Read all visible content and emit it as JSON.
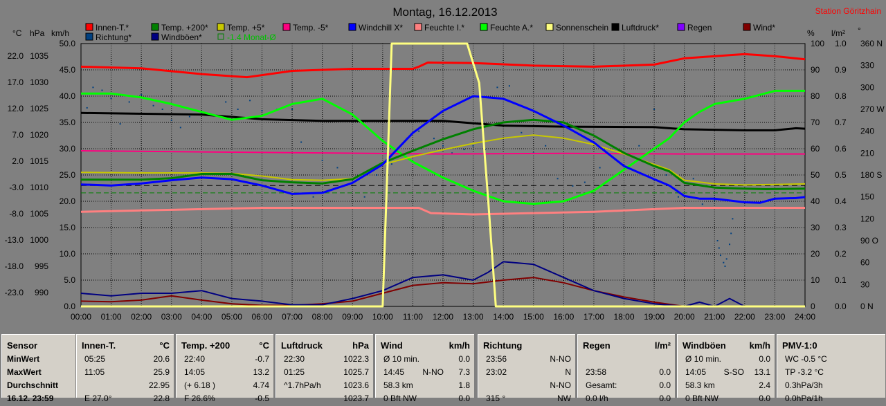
{
  "title": "Montag, 16.12.2013",
  "station": "Station Göritzhain",
  "axes": {
    "left_units": [
      "°C",
      "hPa",
      "km/h"
    ],
    "right_units": [
      "%",
      "l/m²",
      "°"
    ],
    "temp_ticks": [
      "22.0",
      "17.0",
      "12.0",
      "7.0",
      "2.0",
      "-3.0",
      "-8.0",
      "-13.0",
      "-18.0",
      "-23.0"
    ],
    "hpa_ticks": [
      "1035",
      "1030",
      "1025",
      "1020",
      "1015",
      "1010",
      "1005",
      "1000",
      "995",
      "990"
    ],
    "kmh_ticks": [
      "50.0",
      "45.0",
      "40.0",
      "35.0",
      "30.0",
      "25.0",
      "20.0",
      "15.0",
      "10.0",
      "5.0",
      "0.0"
    ],
    "pct_ticks": [
      "100",
      "90",
      "80",
      "70",
      "60",
      "50",
      "40",
      "30",
      "20",
      "10",
      "0"
    ],
    "rain_ticks": [
      "1.0",
      "0.9",
      "0.8",
      "0.7",
      "0.6",
      "0.5",
      "0.4",
      "0.3",
      "0.2",
      "0.1",
      "0.0"
    ],
    "deg_ticks": [
      "360 N",
      "330",
      "300",
      "270 W",
      "240",
      "210",
      "180 S",
      "150",
      "120",
      "90 O",
      "60",
      "30",
      "0 N"
    ],
    "x_ticks": [
      "00:00",
      "01:00",
      "02:00",
      "03:00",
      "04:00",
      "05:00",
      "06:00",
      "07:00",
      "08:00",
      "09:00",
      "10:00",
      "11:00",
      "12:00",
      "13:00",
      "14:00",
      "15:00",
      "16:00",
      "17:00",
      "18:00",
      "19:00",
      "20:00",
      "21:00",
      "22:00",
      "23:00",
      "24:00"
    ]
  },
  "legend": [
    {
      "label": "Innen-T.*",
      "color": "#ff0000"
    },
    {
      "label": "Temp. +200*",
      "color": "#008000"
    },
    {
      "label": "Temp. +5*",
      "color": "#c8c800"
    },
    {
      "label": "Temp. -5*",
      "color": "#ff0080"
    },
    {
      "label": "Windchill X*",
      "color": "#0000ff"
    },
    {
      "label": "Feuchte I.*",
      "color": "#ff8080"
    },
    {
      "label": "Feuchte A.*",
      "color": "#00ff00"
    },
    {
      "label": "Sonnenschein",
      "color": "#ffff80"
    },
    {
      "label": "Luftdruck*",
      "color": "#000000"
    },
    {
      "label": "Regen",
      "color": "#8000ff"
    },
    {
      "label": "Wind*",
      "color": "#800000"
    },
    {
      "label": "Richtung*",
      "color": "#004080"
    },
    {
      "label": "Windböen*",
      "color": "#000080"
    },
    {
      "label": "-1.4 Monat-Ø",
      "color": "#008000"
    }
  ],
  "chart_data": {
    "type": "line",
    "title": "Montag, 16.12.2013",
    "x_unit": "hours",
    "xlim": [
      0,
      24
    ],
    "reference_lines": [
      {
        "name": "-1.4 Monat-Ø",
        "axis": "temp",
        "value": -1.4,
        "style": "dashed",
        "color": "#008000"
      },
      {
        "axis": "temp",
        "value": 0.0,
        "style": "dashed",
        "color": "#000000"
      }
    ],
    "series": [
      {
        "name": "Innen-T.*",
        "axis": "temp",
        "color": "#ff0000",
        "width": 3,
        "x": [
          0,
          2,
          4,
          5.5,
          7,
          9,
          10,
          11,
          11.2,
          11.5,
          13,
          15,
          17,
          19,
          20,
          22,
          23,
          24
        ],
        "y": [
          22.6,
          22.3,
          21.2,
          20.6,
          21.8,
          22.2,
          22.2,
          22.2,
          22.6,
          23.4,
          23.3,
          22.8,
          22.6,
          23.0,
          24.2,
          25.0,
          24.6,
          24.0
        ]
      },
      {
        "name": "Temp. +200*",
        "axis": "temp",
        "color": "#008000",
        "width": 3,
        "x": [
          0,
          2,
          3,
          4,
          5,
          6,
          7,
          8,
          9,
          10,
          11,
          12,
          13,
          14,
          15,
          16,
          17,
          18,
          19,
          19.5,
          20,
          21,
          22,
          22.7,
          24
        ],
        "y": [
          1.1,
          1.1,
          1.4,
          2.2,
          2.2,
          1.0,
          0.6,
          0.4,
          1.2,
          4.3,
          6.6,
          8.8,
          10.7,
          12.0,
          12.5,
          12.0,
          9.5,
          6.2,
          3.7,
          2.7,
          0.5,
          -0.4,
          -0.6,
          -0.7,
          -0.6
        ]
      },
      {
        "name": "Temp. +5*",
        "axis": "temp",
        "color": "#c8c800",
        "width": 2,
        "x": [
          0,
          2,
          4,
          5,
          6,
          7,
          8,
          9,
          10,
          11,
          12,
          13,
          14,
          15,
          16,
          17,
          18,
          19,
          19.5,
          20,
          21,
          22,
          23,
          24
        ],
        "y": [
          2.5,
          2.4,
          2.4,
          2.3,
          1.8,
          1.1,
          1.0,
          1.3,
          4.0,
          5.5,
          6.8,
          8.0,
          9.0,
          9.6,
          9.0,
          7.8,
          6.0,
          4.0,
          3.0,
          1.0,
          0.3,
          0.1,
          0.2,
          0.3
        ]
      },
      {
        "name": "Temp. -5*",
        "axis": "temp",
        "color": "#ff0080",
        "width": 2,
        "x": [
          0,
          4,
          8,
          12,
          16,
          20,
          24
        ],
        "y": [
          6.6,
          6.4,
          6.2,
          6.0,
          6.1,
          6.0,
          6.0
        ]
      },
      {
        "name": "Windchill X*",
        "axis": "temp",
        "color": "#0000ff",
        "width": 3,
        "x": [
          0,
          1,
          2,
          3,
          4,
          5,
          6,
          7,
          8,
          9,
          10,
          11,
          12,
          13,
          14,
          15,
          16,
          17,
          18,
          19,
          19.5,
          20,
          20.5,
          21,
          22,
          22.5,
          23,
          23.7,
          24
        ],
        "y": [
          0.2,
          0.0,
          0.4,
          1.0,
          1.5,
          1.2,
          0.0,
          -1.6,
          -1.4,
          0.5,
          4.0,
          10.0,
          14.2,
          17.0,
          16.5,
          14.2,
          11.4,
          8.2,
          3.7,
          1.2,
          0.0,
          -2.0,
          -2.5,
          -2.5,
          -3.2,
          -3.3,
          -2.5,
          -2.4,
          -2.2
        ]
      },
      {
        "name": "Feuchte I.*",
        "axis": "pct",
        "color": "#ff8080",
        "width": 3,
        "x": [
          0,
          2,
          4,
          6,
          8,
          10,
          11.2,
          11.6,
          13,
          15,
          17,
          19,
          20,
          24
        ],
        "y": [
          36,
          36.5,
          37,
          37.5,
          37.5,
          37.5,
          37.5,
          35.5,
          35,
          35.5,
          36,
          37,
          37.5,
          37.5
        ]
      },
      {
        "name": "Feuchte A.*",
        "axis": "pct",
        "color": "#00ff00",
        "width": 3,
        "x": [
          0,
          1,
          2,
          3,
          4,
          5,
          6,
          7,
          8,
          9,
          10,
          11,
          12,
          13,
          14,
          15,
          16,
          17,
          18,
          19,
          19.5,
          20,
          20.5,
          21,
          22,
          23,
          24
        ],
        "y": [
          81,
          81,
          79.5,
          77,
          74,
          71,
          72.5,
          77,
          79,
          73,
          63,
          55,
          49,
          44,
          40,
          39,
          40,
          44,
          52,
          60,
          64,
          70,
          74,
          77,
          79,
          82,
          82
        ]
      },
      {
        "name": "Sonnenschein",
        "axis": "pct",
        "color": "#ffff80",
        "width": 3,
        "x": [
          0,
          10,
          10.3,
          11,
          12,
          12.8,
          13.2,
          13.5,
          13.75,
          24
        ],
        "y": [
          0,
          0,
          100,
          100,
          100,
          100,
          85,
          40,
          0,
          0
        ]
      },
      {
        "name": "Luftdruck*",
        "axis": "hpa",
        "color": "#000000",
        "width": 3,
        "x": [
          0,
          4,
          6,
          8,
          10,
          12,
          14,
          16,
          19,
          19.5,
          20,
          21,
          22,
          23,
          23.7,
          24
        ],
        "y": [
          1026.8,
          1026.5,
          1025.6,
          1025.3,
          1025.3,
          1025.3,
          1024.4,
          1024.2,
          1024.1,
          1023.9,
          1023.7,
          1023.6,
          1023.5,
          1023.5,
          1023.9,
          1023.8
        ]
      },
      {
        "name": "Wind*",
        "axis": "kmh",
        "color": "#800000",
        "width": 2,
        "x": [
          0,
          1,
          2,
          3,
          4,
          5,
          6,
          7,
          8,
          9,
          10,
          11,
          12,
          13,
          14,
          15,
          16,
          17,
          18,
          19,
          20,
          24
        ],
        "y": [
          1.0,
          0.9,
          1.2,
          2.0,
          1.2,
          0.5,
          0.2,
          0.2,
          0.5,
          1.0,
          2.5,
          4.0,
          4.5,
          4.3,
          5.0,
          5.5,
          4.5,
          3.0,
          1.8,
          0.8,
          0.0,
          0.0
        ]
      },
      {
        "name": "Windböen*",
        "axis": "kmh",
        "color": "#000080",
        "width": 2,
        "x": [
          0,
          1,
          2,
          3,
          4,
          5,
          6,
          7,
          8,
          9,
          10,
          11,
          12,
          13,
          13.5,
          14,
          15,
          16,
          17,
          18,
          19,
          20,
          20.5,
          21,
          21.5,
          22,
          24
        ],
        "y": [
          2.5,
          2.0,
          2.5,
          2.5,
          3.0,
          1.5,
          1.0,
          0.3,
          0.3,
          1.5,
          3.0,
          5.5,
          6.0,
          5.0,
          6.5,
          8.5,
          8.0,
          5.5,
          3.0,
          1.5,
          0.5,
          0.0,
          0.8,
          0.0,
          1.5,
          0.0,
          0.0
        ]
      }
    ],
    "scatter": {
      "name": "Richtung*",
      "axis": "deg",
      "color": "#004080",
      "x": [
        0.2,
        0.4,
        0.7,
        1.0,
        1.3,
        1.6,
        2.0,
        2.4,
        2.7,
        3.0,
        3.3,
        3.6,
        4.0,
        4.4,
        4.8,
        5.2,
        5.6,
        6.0,
        6.5,
        7.0,
        7.3,
        7.7,
        8.0,
        8.5,
        9.0,
        9.4,
        9.8,
        10.3,
        10.8,
        11.2,
        11.7,
        12.0,
        12.3,
        12.7,
        13.0,
        13.4,
        13.8,
        14.2,
        14.6,
        15.0,
        15.4,
        15.8,
        16.3,
        16.7,
        17.2,
        17.6,
        18.0,
        18.5,
        19.0,
        19.4,
        19.8,
        20.3,
        20.6,
        21.0,
        21.1,
        21.15,
        21.2,
        21.3,
        21.35,
        21.4,
        21.5,
        21.55,
        21.6
      ],
      "y": [
        272,
        300,
        296,
        285,
        250,
        280,
        290,
        275,
        270,
        255,
        245,
        260,
        265,
        262,
        280,
        270,
        282,
        268,
        270,
        270,
        225,
        150,
        200,
        190,
        170,
        150,
        180,
        195,
        230,
        240,
        230,
        220,
        210,
        215,
        220,
        215,
        300,
        302,
        238,
        210,
        220,
        175,
        165,
        170,
        190,
        175,
        210,
        220,
        270,
        180,
        150,
        175,
        140,
        145,
        90,
        80,
        70,
        60,
        55,
        65,
        85,
        100,
        120
      ]
    }
  },
  "table": [
    {
      "title": "Sensor",
      "unit": "",
      "rows": [
        [
          "MinWert",
          "",
          ""
        ],
        [
          "MaxWert",
          "",
          ""
        ],
        [
          "Durchschnitt",
          "",
          ""
        ],
        [
          "16.12. 23:59",
          "",
          ""
        ]
      ]
    },
    {
      "title": "Innen-T.",
      "unit": "°C",
      "rows": [
        [
          "05:25",
          "",
          "20.6"
        ],
        [
          "11:05",
          "",
          "25.9"
        ],
        [
          "",
          "",
          "22.95"
        ],
        [
          "E 27.0°",
          "",
          "22.8"
        ]
      ]
    },
    {
      "title": "Temp. +200",
      "unit": "°C",
      "rows": [
        [
          "22:40",
          "",
          "-0.7"
        ],
        [
          "14:05",
          "",
          "13.2"
        ],
        [
          "(+ 6.18 )",
          "",
          "4.74"
        ],
        [
          "F 26.6%",
          "",
          "-0.5"
        ]
      ]
    },
    {
      "title": "Luftdruck",
      "unit": "hPa",
      "rows": [
        [
          "22:30",
          "",
          "1022.3"
        ],
        [
          "01:25",
          "",
          "1025.7"
        ],
        [
          "^1.7hPa/h",
          "",
          "1023.6"
        ],
        [
          "",
          "",
          "1023.7"
        ]
      ]
    },
    {
      "title": "Wind",
      "unit": "km/h",
      "rows": [
        [
          "Ø 10 min.",
          "",
          "0.0"
        ],
        [
          "14:45",
          "N-NO",
          "7.3"
        ],
        [
          "58.3 km",
          "",
          "1.8"
        ],
        [
          "0 Bft NW",
          "",
          "0.0"
        ]
      ]
    },
    {
      "title": "Richtung",
      "unit": "",
      "rows": [
        [
          "23:56",
          "",
          "N-NO"
        ],
        [
          "23:02",
          "",
          "N"
        ],
        [
          "",
          "",
          "N-NO"
        ],
        [
          "315 °",
          "",
          "NW"
        ]
      ]
    },
    {
      "title": "Regen",
      "unit": "l/m²",
      "rows": [
        [
          "",
          "",
          ""
        ],
        [
          "23:58",
          "",
          "0.0"
        ],
        [
          "Gesamt:",
          "",
          "0.0"
        ],
        [
          "0.0 l/h",
          "",
          "0.0"
        ]
      ]
    },
    {
      "title": "Windböen",
      "unit": "km/h",
      "rows": [
        [
          "Ø 10 min.",
          "",
          "0.0"
        ],
        [
          "14:05",
          "S-SO",
          "13.1"
        ],
        [
          "58.3 km",
          "",
          "2.4"
        ],
        [
          "0 Bft NW",
          "",
          "0.0"
        ]
      ]
    },
    {
      "title": "PMV-1:0",
      "unit": "",
      "rows": [
        [
          "WC -0.5 °C",
          "",
          ""
        ],
        [
          "TP -3.2 °C",
          "",
          ""
        ],
        [
          "0.3hPa/3h",
          "",
          ""
        ],
        [
          "0.0hPa/1h",
          "",
          ""
        ]
      ]
    }
  ]
}
